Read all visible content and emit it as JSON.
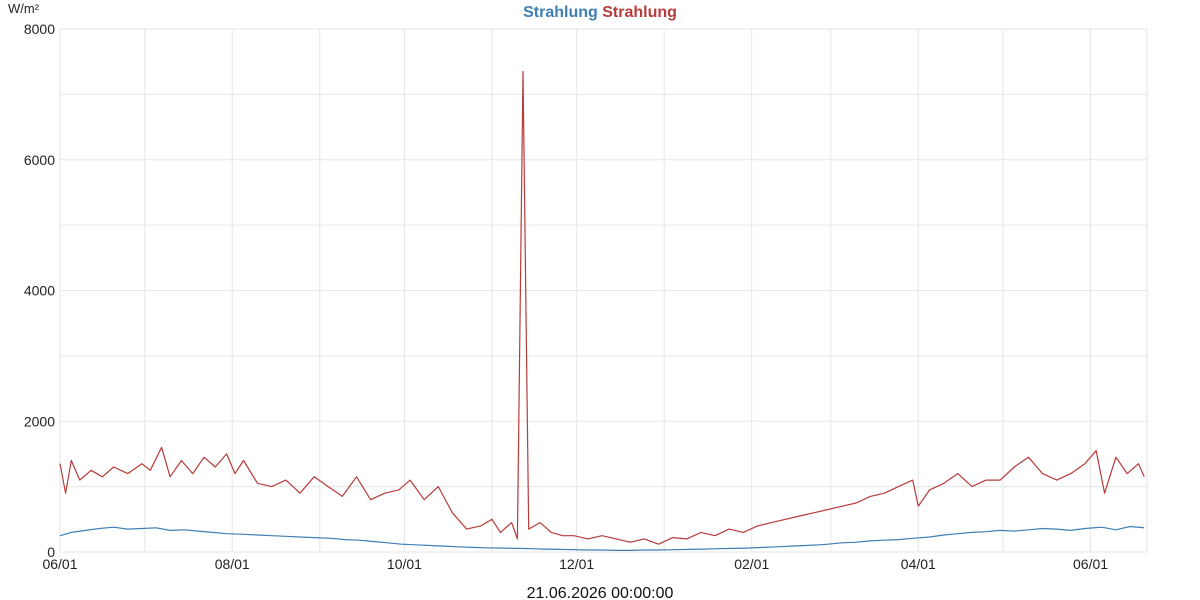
{
  "chart_data": {
    "type": "line",
    "title_parts": [
      {
        "text": "Strahlung",
        "color": "#3f7fb4"
      },
      {
        "text": "Strahlung",
        "color": "#b73b3b"
      }
    ],
    "ylabel": "W/m²",
    "ylim": [
      0,
      8000
    ],
    "yticks": [
      0,
      2000,
      4000,
      6000,
      8000
    ],
    "xlim": [
      "2025-06-01",
      "2026-06-21"
    ],
    "xticks": [
      {
        "date": "2025-06-01",
        "label": "06/01"
      },
      {
        "date": "2025-08-01",
        "label": "08/01"
      },
      {
        "date": "2025-10-01",
        "label": "10/01"
      },
      {
        "date": "2025-12-01",
        "label": "12/01"
      },
      {
        "date": "2026-02-01",
        "label": "02/01"
      },
      {
        "date": "2026-04-01",
        "label": "04/01"
      },
      {
        "date": "2026-06-01",
        "label": "06/01"
      }
    ],
    "footer": "21.06.2026 00:00:00",
    "grid": true,
    "series": [
      {
        "name": "Strahlung",
        "color": "#3f7fb4",
        "points": [
          [
            "2025-06-01",
            250
          ],
          [
            "2025-06-05",
            300
          ],
          [
            "2025-06-10",
            330
          ],
          [
            "2025-06-15",
            360
          ],
          [
            "2025-06-20",
            380
          ],
          [
            "2025-06-25",
            350
          ],
          [
            "2025-06-30",
            360
          ],
          [
            "2025-07-05",
            370
          ],
          [
            "2025-07-10",
            330
          ],
          [
            "2025-07-15",
            340
          ],
          [
            "2025-07-20",
            320
          ],
          [
            "2025-07-25",
            300
          ],
          [
            "2025-07-30",
            280
          ],
          [
            "2025-08-05",
            270
          ],
          [
            "2025-08-10",
            260
          ],
          [
            "2025-08-15",
            250
          ],
          [
            "2025-08-20",
            240
          ],
          [
            "2025-08-25",
            230
          ],
          [
            "2025-08-30",
            220
          ],
          [
            "2025-09-05",
            210
          ],
          [
            "2025-09-10",
            190
          ],
          [
            "2025-09-15",
            180
          ],
          [
            "2025-09-20",
            160
          ],
          [
            "2025-09-25",
            140
          ],
          [
            "2025-09-30",
            120
          ],
          [
            "2025-10-05",
            110
          ],
          [
            "2025-10-10",
            100
          ],
          [
            "2025-10-15",
            90
          ],
          [
            "2025-10-20",
            80
          ],
          [
            "2025-10-25",
            70
          ],
          [
            "2025-10-30",
            65
          ],
          [
            "2025-11-05",
            60
          ],
          [
            "2025-11-10",
            55
          ],
          [
            "2025-11-15",
            50
          ],
          [
            "2025-11-20",
            45
          ],
          [
            "2025-11-25",
            40
          ],
          [
            "2025-11-30",
            35
          ],
          [
            "2025-12-05",
            30
          ],
          [
            "2025-12-10",
            30
          ],
          [
            "2025-12-15",
            25
          ],
          [
            "2025-12-20",
            25
          ],
          [
            "2025-12-25",
            30
          ],
          [
            "2025-12-30",
            30
          ],
          [
            "2026-01-05",
            35
          ],
          [
            "2026-01-10",
            40
          ],
          [
            "2026-01-15",
            45
          ],
          [
            "2026-01-20",
            50
          ],
          [
            "2026-01-25",
            55
          ],
          [
            "2026-01-30",
            60
          ],
          [
            "2026-02-05",
            70
          ],
          [
            "2026-02-10",
            80
          ],
          [
            "2026-02-15",
            90
          ],
          [
            "2026-02-20",
            100
          ],
          [
            "2026-02-25",
            110
          ],
          [
            "2026-02-28",
            120
          ],
          [
            "2026-03-05",
            140
          ],
          [
            "2026-03-10",
            150
          ],
          [
            "2026-03-15",
            170
          ],
          [
            "2026-03-20",
            180
          ],
          [
            "2026-03-25",
            190
          ],
          [
            "2026-03-30",
            210
          ],
          [
            "2026-04-05",
            230
          ],
          [
            "2026-04-10",
            260
          ],
          [
            "2026-04-15",
            280
          ],
          [
            "2026-04-20",
            300
          ],
          [
            "2026-04-25",
            310
          ],
          [
            "2026-04-30",
            330
          ],
          [
            "2026-05-05",
            320
          ],
          [
            "2026-05-10",
            340
          ],
          [
            "2026-05-15",
            360
          ],
          [
            "2026-05-20",
            350
          ],
          [
            "2026-05-25",
            330
          ],
          [
            "2026-05-30",
            360
          ],
          [
            "2026-06-05",
            380
          ],
          [
            "2026-06-10",
            340
          ],
          [
            "2026-06-15",
            390
          ],
          [
            "2026-06-20",
            370
          ]
        ]
      },
      {
        "name": "Strahlung",
        "color": "#b73b3b",
        "points": [
          [
            "2025-06-01",
            1350
          ],
          [
            "2025-06-03",
            900
          ],
          [
            "2025-06-05",
            1400
          ],
          [
            "2025-06-08",
            1100
          ],
          [
            "2025-06-12",
            1250
          ],
          [
            "2025-06-16",
            1150
          ],
          [
            "2025-06-20",
            1300
          ],
          [
            "2025-06-25",
            1200
          ],
          [
            "2025-06-30",
            1350
          ],
          [
            "2025-07-03",
            1250
          ],
          [
            "2025-07-07",
            1600
          ],
          [
            "2025-07-10",
            1150
          ],
          [
            "2025-07-14",
            1400
          ],
          [
            "2025-07-18",
            1200
          ],
          [
            "2025-07-22",
            1450
          ],
          [
            "2025-07-26",
            1300
          ],
          [
            "2025-07-30",
            1500
          ],
          [
            "2025-08-02",
            1200
          ],
          [
            "2025-08-05",
            1400
          ],
          [
            "2025-08-10",
            1050
          ],
          [
            "2025-08-15",
            1000
          ],
          [
            "2025-08-20",
            1100
          ],
          [
            "2025-08-25",
            900
          ],
          [
            "2025-08-30",
            1150
          ],
          [
            "2025-09-04",
            1000
          ],
          [
            "2025-09-09",
            850
          ],
          [
            "2025-09-14",
            1150
          ],
          [
            "2025-09-19",
            800
          ],
          [
            "2025-09-24",
            900
          ],
          [
            "2025-09-29",
            950
          ],
          [
            "2025-10-03",
            1100
          ],
          [
            "2025-10-08",
            800
          ],
          [
            "2025-10-13",
            1000
          ],
          [
            "2025-10-18",
            600
          ],
          [
            "2025-10-23",
            350
          ],
          [
            "2025-10-28",
            400
          ],
          [
            "2025-11-01",
            500
          ],
          [
            "2025-11-04",
            300
          ],
          [
            "2025-11-08",
            450
          ],
          [
            "2025-11-10",
            200
          ],
          [
            "2025-11-12",
            7350
          ],
          [
            "2025-11-14",
            350
          ],
          [
            "2025-11-18",
            450
          ],
          [
            "2025-11-22",
            300
          ],
          [
            "2025-11-26",
            250
          ],
          [
            "2025-11-30",
            250
          ],
          [
            "2025-12-05",
            200
          ],
          [
            "2025-12-10",
            250
          ],
          [
            "2025-12-15",
            200
          ],
          [
            "2025-12-20",
            150
          ],
          [
            "2025-12-25",
            200
          ],
          [
            "2025-12-30",
            120
          ],
          [
            "2026-01-04",
            220
          ],
          [
            "2026-01-09",
            200
          ],
          [
            "2026-01-14",
            300
          ],
          [
            "2026-01-19",
            250
          ],
          [
            "2026-01-24",
            350
          ],
          [
            "2026-01-29",
            300
          ],
          [
            "2026-02-03",
            400
          ],
          [
            "2026-02-08",
            450
          ],
          [
            "2026-02-13",
            500
          ],
          [
            "2026-02-18",
            550
          ],
          [
            "2026-02-23",
            600
          ],
          [
            "2026-02-28",
            650
          ],
          [
            "2026-03-05",
            700
          ],
          [
            "2026-03-10",
            750
          ],
          [
            "2026-03-15",
            850
          ],
          [
            "2026-03-20",
            900
          ],
          [
            "2026-03-25",
            1000
          ],
          [
            "2026-03-30",
            1100
          ],
          [
            "2026-04-01",
            700
          ],
          [
            "2026-04-05",
            950
          ],
          [
            "2026-04-10",
            1050
          ],
          [
            "2026-04-15",
            1200
          ],
          [
            "2026-04-20",
            1000
          ],
          [
            "2026-04-25",
            1100
          ],
          [
            "2026-04-30",
            1100
          ],
          [
            "2026-05-05",
            1300
          ],
          [
            "2026-05-10",
            1450
          ],
          [
            "2026-05-15",
            1200
          ],
          [
            "2026-05-20",
            1100
          ],
          [
            "2026-05-25",
            1200
          ],
          [
            "2026-05-30",
            1350
          ],
          [
            "2026-06-03",
            1550
          ],
          [
            "2026-06-06",
            900
          ],
          [
            "2026-06-10",
            1450
          ],
          [
            "2026-06-14",
            1200
          ],
          [
            "2026-06-18",
            1350
          ],
          [
            "2026-06-20",
            1150
          ]
        ]
      }
    ]
  }
}
